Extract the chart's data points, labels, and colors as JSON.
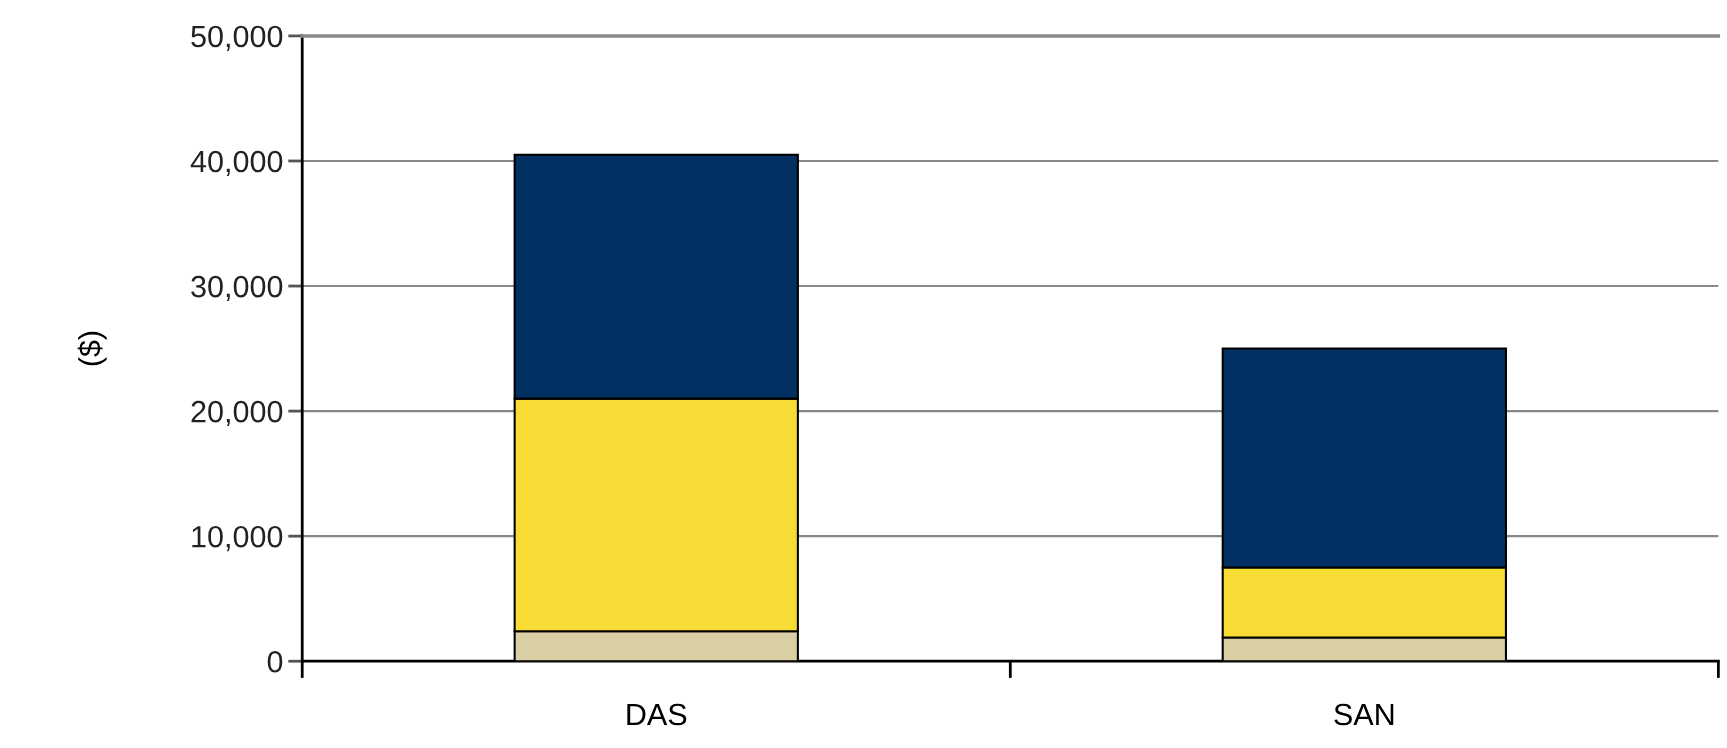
{
  "chart_data": {
    "type": "bar",
    "stacked": true,
    "ylabel": "($)",
    "categories": [
      "DAS",
      "SAN"
    ],
    "series": [
      {
        "color": "#d8d0a4",
        "values": [
          2400,
          1900
        ]
      },
      {
        "color": "#f6dc35",
        "values": [
          18600,
          5600
        ]
      },
      {
        "color": "#033063",
        "values": [
          19500,
          17500
        ]
      }
    ],
    "ylim": [
      0,
      50000
    ],
    "yticks": [
      {
        "value": 0,
        "label": "0"
      },
      {
        "value": 10000,
        "label": "10,000"
      },
      {
        "value": 20000,
        "label": "20,000"
      },
      {
        "value": 30000,
        "label": "30,000"
      },
      {
        "value": 40000,
        "label": "40,000"
      },
      {
        "value": 50000,
        "label": "50,000"
      }
    ],
    "grid": "y",
    "legend": false
  }
}
